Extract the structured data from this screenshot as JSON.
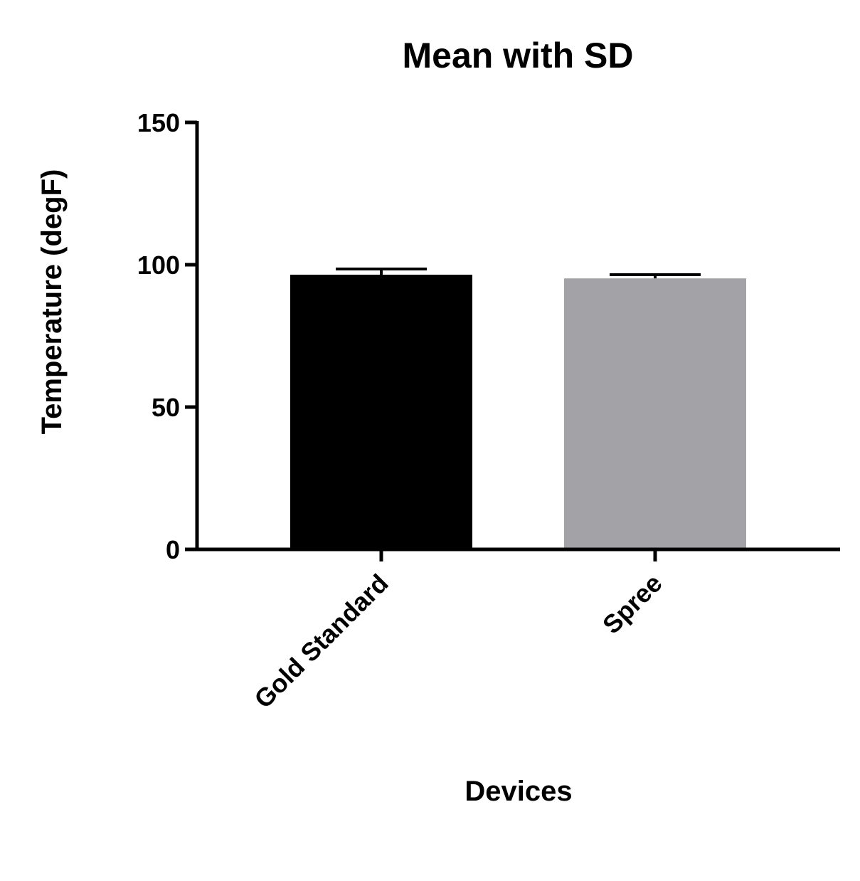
{
  "chart_data": {
    "type": "bar",
    "title": "Mean with SD",
    "xlabel": "Devices",
    "ylabel": "Temperature  (degF)",
    "categories": [
      "Gold Standard",
      "Spree"
    ],
    "values": [
      96.5,
      95.2
    ],
    "error_sd": [
      2.0,
      1.3
    ],
    "ylim": [
      0,
      150
    ],
    "yticks": [
      "0",
      "50",
      "100",
      "150"
    ],
    "grid": false,
    "legend": "none",
    "colors": [
      "#000000",
      "#a3a2a6"
    ]
  }
}
